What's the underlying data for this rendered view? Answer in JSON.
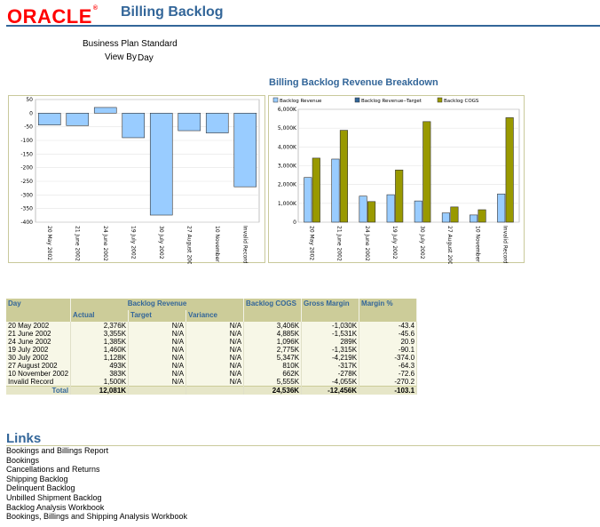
{
  "header": {
    "logo_text": "ORACLE",
    "app_title": "Billing Backlog"
  },
  "params": {
    "plan": "Business Plan Standard",
    "view_by_label": "View By",
    "view_by_value": "Day"
  },
  "colors": {
    "revenue": "#99ccff",
    "target": "#336699",
    "cogs": "#999900",
    "accent": "#336699"
  },
  "chart_title": "Billing Backlog Revenue Breakdown",
  "chart_data": [
    {
      "type": "bar",
      "title": "",
      "categories": [
        "20 May 2002",
        "21 June 2002",
        "24 June 2002",
        "19 July 2002",
        "30 July 2002",
        "27 August 2002",
        "10 November 2002",
        "Invalid Record"
      ],
      "series": [
        {
          "values": [
            -43.4,
            -45.6,
            20.9,
            -90.1,
            -374.0,
            -64.3,
            -72.6,
            -270.2
          ]
        }
      ],
      "ylim": [
        -400,
        50
      ],
      "yticks": [
        "50",
        "0",
        "-50",
        "-100",
        "-150",
        "-200",
        "-250",
        "-300",
        "-350",
        "-400"
      ],
      "grid": true,
      "legend": "none"
    },
    {
      "type": "bar",
      "title": "",
      "categories": [
        "20 May 2002",
        "21 June 2002",
        "24 June 2002",
        "19 July 2002",
        "30 July 2002",
        "27 August 2002",
        "10 November 2002",
        "Invalid Record"
      ],
      "series": [
        {
          "name": "Backlog Revenue",
          "values": [
            2376,
            3355,
            1385,
            1460,
            1128,
            493,
            383,
            1500
          ]
        },
        {
          "name": "Backlog Revenue--Target",
          "values": [
            0,
            0,
            0,
            0,
            0,
            0,
            0,
            0
          ]
        },
        {
          "name": "Backlog COGS",
          "values": [
            3406,
            4885,
            1096,
            2775,
            5347,
            810,
            662,
            5555
          ]
        }
      ],
      "ylim": [
        0,
        6000
      ],
      "yticks": [
        "6,000K",
        "5,000K",
        "4,000K",
        "3,000K",
        "2,000K",
        "1,000K",
        "0"
      ],
      "grid": true,
      "legend": "top"
    }
  ],
  "table": {
    "headers": {
      "day": "Day",
      "backlog_revenue": "Backlog Revenue",
      "backlog_cogs": "Backlog COGS",
      "gross_margin": "Gross Margin",
      "margin_pct": "Margin %",
      "actual": "Actual",
      "target": "Target",
      "variance": "Variance"
    },
    "rows": [
      {
        "day": "20 May 2002",
        "actual": "2,376K",
        "target": "N/A",
        "variance": "N/A",
        "cogs": "3,406K",
        "gross_margin": "-1,030K",
        "margin_pct": "-43.4"
      },
      {
        "day": "21 June 2002",
        "actual": "3,355K",
        "target": "N/A",
        "variance": "N/A",
        "cogs": "4,885K",
        "gross_margin": "-1,531K",
        "margin_pct": "-45.6"
      },
      {
        "day": "24 June 2002",
        "actual": "1,385K",
        "target": "N/A",
        "variance": "N/A",
        "cogs": "1,096K",
        "gross_margin": "289K",
        "margin_pct": "20.9"
      },
      {
        "day": "19 July 2002",
        "actual": "1,460K",
        "target": "N/A",
        "variance": "N/A",
        "cogs": "2,775K",
        "gross_margin": "-1,315K",
        "margin_pct": "-90.1"
      },
      {
        "day": "30 July 2002",
        "actual": "1,128K",
        "target": "N/A",
        "variance": "N/A",
        "cogs": "5,347K",
        "gross_margin": "-4,219K",
        "margin_pct": "-374.0"
      },
      {
        "day": "27 August 2002",
        "actual": "493K",
        "target": "N/A",
        "variance": "N/A",
        "cogs": "810K",
        "gross_margin": "-317K",
        "margin_pct": "-64.3"
      },
      {
        "day": "10 November 2002",
        "actual": "383K",
        "target": "N/A",
        "variance": "N/A",
        "cogs": "662K",
        "gross_margin": "-278K",
        "margin_pct": "-72.6"
      },
      {
        "day": "Invalid Record",
        "actual": "1,500K",
        "target": "N/A",
        "variance": "N/A",
        "cogs": "5,555K",
        "gross_margin": "-4,055K",
        "margin_pct": "-270.2"
      }
    ],
    "total": {
      "label": "Total",
      "actual": "12,081K",
      "cogs": "24,536K",
      "gross_margin": "-12,456K",
      "margin_pct": "-103.1"
    }
  },
  "links": {
    "title": "Links",
    "items": [
      "Bookings and Billings Report",
      "Bookings",
      "Cancellations and Returns",
      "Shipping Backlog",
      "Delinquent Backlog",
      "Unbilled Shipment Backlog",
      "Backlog Analysis Workbook",
      "Bookings, Billings and Shipping Analysis Workbook"
    ]
  }
}
